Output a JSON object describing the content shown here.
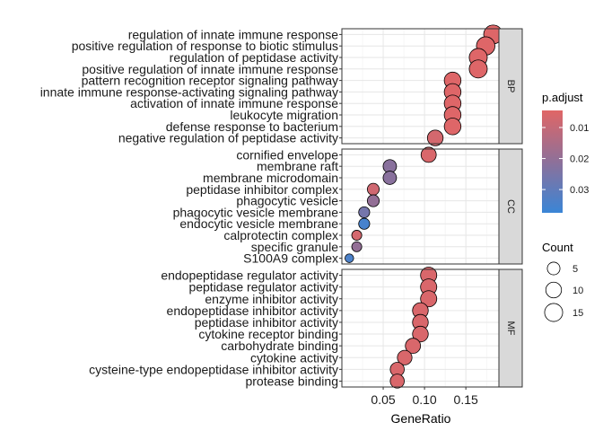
{
  "chart_data": {
    "type": "scatter",
    "xlabel": "GeneRatio",
    "x_ticks": [
      0.05,
      0.1,
      0.15
    ],
    "x_tick_labels": [
      "0.05",
      "0.10",
      "0.15"
    ],
    "xlim": [
      0.0,
      0.19
    ],
    "facets": [
      {
        "label": "BP",
        "points": [
          {
            "term": "regulation of innate immune response",
            "x": 0.183,
            "count": 17,
            "p_adjust": 0.005
          },
          {
            "term": "positive regulation of response to biotic stimulus",
            "x": 0.174,
            "count": 16,
            "p_adjust": 0.005
          },
          {
            "term": "regulation of peptidase activity",
            "x": 0.165,
            "count": 15,
            "p_adjust": 0.005
          },
          {
            "term": "positive regulation of innate immune response",
            "x": 0.165,
            "count": 15,
            "p_adjust": 0.005
          },
          {
            "term": "pattern recognition receptor signaling pathway",
            "x": 0.134,
            "count": 12,
            "p_adjust": 0.005
          },
          {
            "term": "innate immune response-activating signaling pathway",
            "x": 0.134,
            "count": 12,
            "p_adjust": 0.005
          },
          {
            "term": "activation of innate immune response",
            "x": 0.134,
            "count": 12,
            "p_adjust": 0.005
          },
          {
            "term": "leukocyte migration",
            "x": 0.134,
            "count": 12,
            "p_adjust": 0.005
          },
          {
            "term": "defense response to bacterium",
            "x": 0.134,
            "count": 12,
            "p_adjust": 0.005
          },
          {
            "term": "negative regulation of peptidase activity",
            "x": 0.113,
            "count": 10,
            "p_adjust": 0.007
          }
        ]
      },
      {
        "label": "CC",
        "points": [
          {
            "term": "cornified envelope",
            "x": 0.105,
            "count": 9,
            "p_adjust": 0.006
          },
          {
            "term": "membrane raft",
            "x": 0.058,
            "count": 6,
            "p_adjust": 0.022
          },
          {
            "term": "membrane microdomain",
            "x": 0.058,
            "count": 6,
            "p_adjust": 0.022
          },
          {
            "term": "peptidase inhibitor complex",
            "x": 0.038,
            "count": 4,
            "p_adjust": 0.008
          },
          {
            "term": "phagocytic vesicle",
            "x": 0.038,
            "count": 4,
            "p_adjust": 0.02
          },
          {
            "term": "phagocytic vesicle membrane",
            "x": 0.027,
            "count": 3,
            "p_adjust": 0.026
          },
          {
            "term": "endocytic vesicle membrane",
            "x": 0.027,
            "count": 3,
            "p_adjust": 0.035
          },
          {
            "term": "calprotectin complex",
            "x": 0.018,
            "count": 2,
            "p_adjust": 0.007
          },
          {
            "term": "specific granule",
            "x": 0.018,
            "count": 2,
            "p_adjust": 0.02
          },
          {
            "term": "S100A9 complex",
            "x": 0.009,
            "count": 1,
            "p_adjust": 0.034
          }
        ]
      },
      {
        "label": "MF",
        "points": [
          {
            "term": "endopeptidase regulator activity",
            "x": 0.105,
            "count": 11,
            "p_adjust": 0.006
          },
          {
            "term": "peptidase regulator activity",
            "x": 0.105,
            "count": 11,
            "p_adjust": 0.006
          },
          {
            "term": "enzyme inhibitor activity",
            "x": 0.105,
            "count": 11,
            "p_adjust": 0.006
          },
          {
            "term": "endopeptidase inhibitor activity",
            "x": 0.095,
            "count": 10,
            "p_adjust": 0.006
          },
          {
            "term": "peptidase inhibitor activity",
            "x": 0.095,
            "count": 10,
            "p_adjust": 0.006
          },
          {
            "term": "cytokine receptor binding",
            "x": 0.095,
            "count": 10,
            "p_adjust": 0.006
          },
          {
            "term": "carbohydrate binding",
            "x": 0.086,
            "count": 9,
            "p_adjust": 0.006
          },
          {
            "term": "cytokine activity",
            "x": 0.076,
            "count": 8,
            "p_adjust": 0.006
          },
          {
            "term": "cysteine-type endopeptidase inhibitor activity",
            "x": 0.067,
            "count": 7,
            "p_adjust": 0.006
          },
          {
            "term": "protease binding",
            "x": 0.067,
            "count": 7,
            "p_adjust": 0.006
          }
        ]
      }
    ],
    "color_legend": {
      "title": "p.adjust",
      "range": [
        0.0045,
        0.0375
      ],
      "ticks": [
        0.01,
        0.02,
        0.03
      ],
      "tick_labels": [
        "0.01",
        "0.02",
        "0.03"
      ],
      "low_color": "#E06666",
      "high_color": "#3A85D6"
    },
    "size_legend": {
      "title": "Count",
      "values": [
        5,
        10,
        15
      ],
      "labels": [
        "5",
        "10",
        "15"
      ]
    },
    "grid": true,
    "legend_position": "right"
  }
}
